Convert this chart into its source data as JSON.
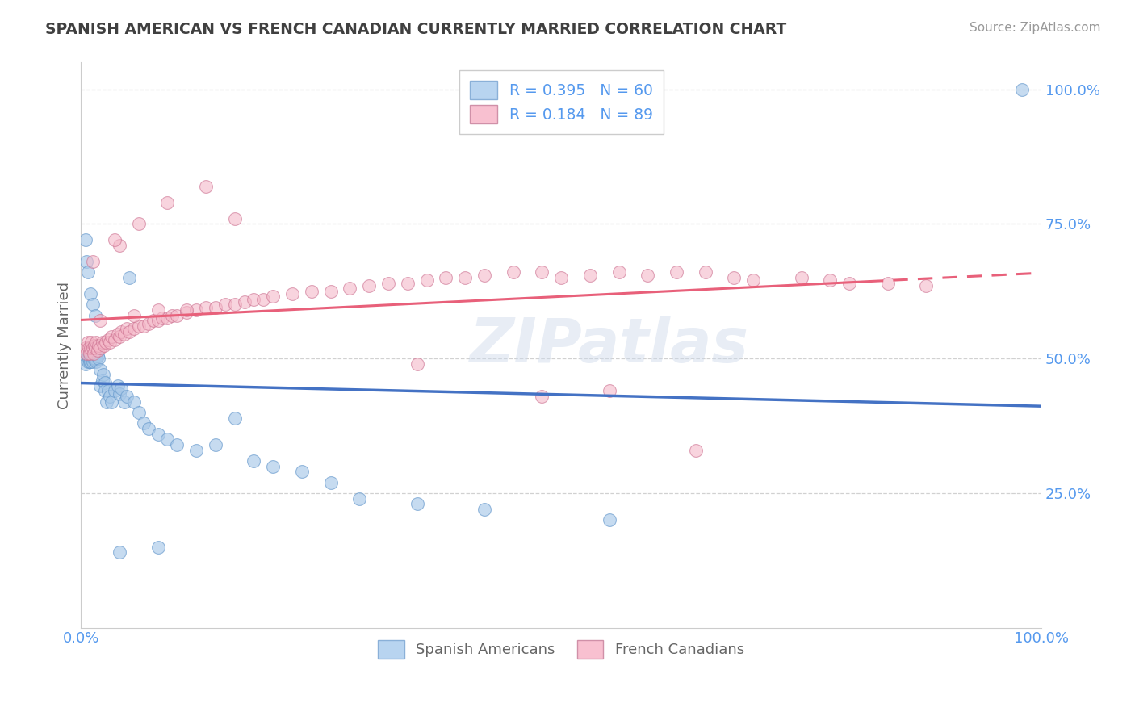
{
  "title": "SPANISH AMERICAN VS FRENCH CANADIAN CURRENTLY MARRIED CORRELATION CHART",
  "source": "Source: ZipAtlas.com",
  "ylabel": "Currently Married",
  "watermark": "ZIPatlas",
  "legend_r1": "R = 0.395",
  "legend_n1": "N = 60",
  "legend_r2": "R = 0.184",
  "legend_n2": "N = 89",
  "xlim": [
    0.0,
    1.0
  ],
  "ylim": [
    0.0,
    1.05
  ],
  "yticks": [
    0.25,
    0.5,
    0.75,
    1.0
  ],
  "ytick_labels": [
    "25.0%",
    "50.0%",
    "75.0%",
    "100.0%"
  ],
  "blue_dot_color": "#a8c8e8",
  "pink_dot_color": "#f4b8c8",
  "trend_blue": "#4472c4",
  "trend_pink": "#e8607a",
  "background": "#ffffff",
  "grid_color": "#cccccc",
  "title_color": "#404040",
  "axis_label_color": "#666666",
  "tick_color": "#5599ee",
  "source_color": "#999999",
  "blue_scatter_x": [
    0.005,
    0.005,
    0.007,
    0.007,
    0.008,
    0.008,
    0.009,
    0.009,
    0.01,
    0.01,
    0.01,
    0.01,
    0.012,
    0.012,
    0.012,
    0.013,
    0.013,
    0.015,
    0.015,
    0.015,
    0.016,
    0.016,
    0.017,
    0.018,
    0.02,
    0.02,
    0.022,
    0.023,
    0.025,
    0.025,
    0.027,
    0.028,
    0.03,
    0.032,
    0.035,
    0.038,
    0.04,
    0.042,
    0.045,
    0.048,
    0.05,
    0.055,
    0.06,
    0.065,
    0.07,
    0.08,
    0.09,
    0.1,
    0.12,
    0.14,
    0.16,
    0.18,
    0.2,
    0.23,
    0.26,
    0.29,
    0.35,
    0.42,
    0.55,
    0.98
  ],
  "blue_scatter_y": [
    0.5,
    0.49,
    0.505,
    0.495,
    0.51,
    0.5,
    0.51,
    0.495,
    0.505,
    0.51,
    0.5,
    0.495,
    0.5,
    0.505,
    0.495,
    0.5,
    0.505,
    0.51,
    0.505,
    0.5,
    0.51,
    0.495,
    0.505,
    0.5,
    0.45,
    0.48,
    0.46,
    0.47,
    0.455,
    0.44,
    0.42,
    0.44,
    0.43,
    0.42,
    0.44,
    0.45,
    0.435,
    0.445,
    0.42,
    0.43,
    0.65,
    0.42,
    0.4,
    0.38,
    0.37,
    0.36,
    0.35,
    0.34,
    0.33,
    0.34,
    0.39,
    0.31,
    0.3,
    0.29,
    0.27,
    0.24,
    0.23,
    0.22,
    0.2,
    1.0
  ],
  "blue_outlier_x": [
    0.005,
    0.006,
    0.007,
    0.01,
    0.012,
    0.015,
    0.04,
    0.08
  ],
  "blue_outlier_y": [
    0.72,
    0.68,
    0.66,
    0.62,
    0.6,
    0.58,
    0.14,
    0.15
  ],
  "pink_scatter_x": [
    0.005,
    0.006,
    0.007,
    0.008,
    0.009,
    0.01,
    0.011,
    0.012,
    0.013,
    0.014,
    0.015,
    0.016,
    0.017,
    0.018,
    0.02,
    0.022,
    0.024,
    0.026,
    0.028,
    0.03,
    0.032,
    0.035,
    0.038,
    0.04,
    0.042,
    0.045,
    0.048,
    0.05,
    0.055,
    0.06,
    0.065,
    0.07,
    0.075,
    0.08,
    0.085,
    0.09,
    0.095,
    0.1,
    0.11,
    0.12,
    0.13,
    0.14,
    0.15,
    0.16,
    0.17,
    0.18,
    0.19,
    0.2,
    0.22,
    0.24,
    0.26,
    0.28,
    0.3,
    0.32,
    0.34,
    0.36,
    0.38,
    0.4,
    0.42,
    0.45,
    0.48,
    0.5,
    0.53,
    0.56,
    0.59,
    0.62,
    0.65,
    0.68,
    0.7,
    0.75,
    0.78,
    0.8,
    0.84,
    0.88,
    0.04,
    0.06,
    0.09,
    0.13,
    0.16,
    0.35,
    0.48,
    0.55,
    0.64,
    0.02,
    0.012,
    0.035,
    0.055,
    0.08,
    0.11
  ],
  "pink_scatter_y": [
    0.52,
    0.51,
    0.53,
    0.52,
    0.51,
    0.52,
    0.53,
    0.52,
    0.51,
    0.525,
    0.52,
    0.53,
    0.515,
    0.525,
    0.52,
    0.53,
    0.525,
    0.53,
    0.535,
    0.53,
    0.54,
    0.535,
    0.545,
    0.54,
    0.55,
    0.545,
    0.555,
    0.55,
    0.555,
    0.56,
    0.56,
    0.565,
    0.57,
    0.57,
    0.575,
    0.575,
    0.58,
    0.58,
    0.585,
    0.59,
    0.595,
    0.595,
    0.6,
    0.6,
    0.605,
    0.61,
    0.61,
    0.615,
    0.62,
    0.625,
    0.625,
    0.63,
    0.635,
    0.64,
    0.64,
    0.645,
    0.65,
    0.65,
    0.655,
    0.66,
    0.66,
    0.65,
    0.655,
    0.66,
    0.655,
    0.66,
    0.66,
    0.65,
    0.645,
    0.65,
    0.645,
    0.64,
    0.64,
    0.635,
    0.71,
    0.75,
    0.79,
    0.82,
    0.76,
    0.49,
    0.43,
    0.44,
    0.33,
    0.57,
    0.68,
    0.72,
    0.58,
    0.59,
    0.59
  ]
}
